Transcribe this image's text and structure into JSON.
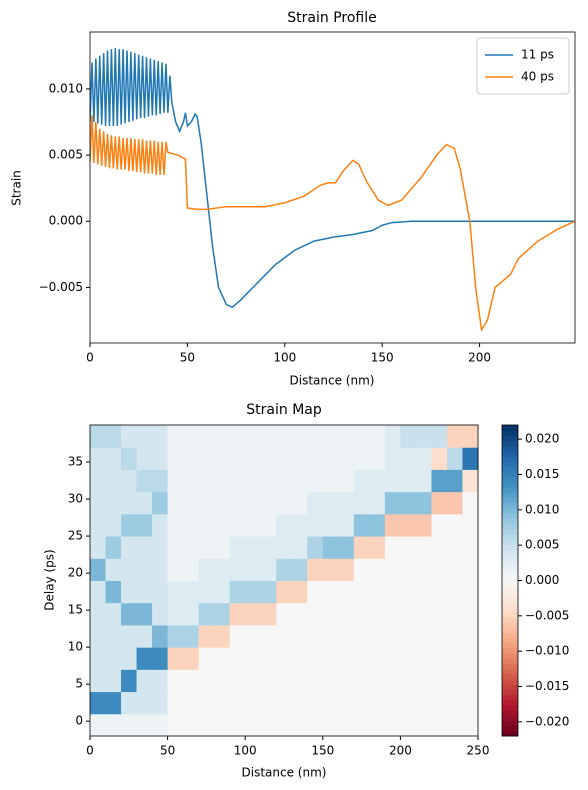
{
  "chart_data": [
    {
      "type": "line",
      "title": "Strain Profile",
      "x_label": "Distance (nm)",
      "y_label": "Strain",
      "xlim": [
        0,
        249
      ],
      "ylim": [
        -0.0092,
        0.0143
      ],
      "xticks": [
        0,
        50,
        100,
        150,
        200
      ],
      "yticks": [
        {
          "value": -0.005,
          "label": "−0.005"
        },
        {
          "value": 0,
          "label": "0.000"
        },
        {
          "value": 0.005,
          "label": "0.005"
        },
        {
          "value": 0.01,
          "label": "0.010"
        }
      ],
      "legend": "upper right",
      "series": [
        {
          "name": "11 ps",
          "color": "#1f77b4",
          "x": [
            0,
            1,
            2,
            3,
            4,
            5,
            6,
            7,
            8,
            9,
            10,
            11,
            12,
            13,
            14,
            15,
            16,
            17,
            18,
            19,
            20,
            21,
            22,
            23,
            24,
            25,
            26,
            27,
            28,
            29,
            30,
            31,
            32,
            33,
            34,
            35,
            36,
            37,
            38,
            39,
            40,
            41,
            42,
            44,
            46,
            48,
            49,
            50,
            52,
            54,
            55,
            57,
            60,
            63,
            66,
            70,
            73,
            77,
            85,
            95,
            105,
            115,
            125,
            135,
            145,
            150,
            155,
            165,
            200,
            249
          ],
          "values": [
            0.0075,
            0.012,
            0.0075,
            0.0123,
            0.0074,
            0.0125,
            0.0073,
            0.0127,
            0.0072,
            0.0129,
            0.0072,
            0.013,
            0.0072,
            0.0131,
            0.0072,
            0.013,
            0.0073,
            0.013,
            0.0074,
            0.0129,
            0.0075,
            0.0128,
            0.0076,
            0.0127,
            0.0077,
            0.0126,
            0.0078,
            0.0125,
            0.0078,
            0.0124,
            0.0079,
            0.0123,
            0.008,
            0.0122,
            0.008,
            0.0121,
            0.0081,
            0.012,
            0.0082,
            0.0119,
            0.0082,
            0.011,
            0.009,
            0.0075,
            0.0068,
            0.0075,
            0.0082,
            0.0072,
            0.0075,
            0.0081,
            0.0079,
            0.006,
            0.002,
            -0.002,
            -0.005,
            -0.0063,
            -0.0065,
            -0.006,
            -0.0048,
            -0.0033,
            -0.0022,
            -0.0015,
            -0.0012,
            -0.001,
            -0.0007,
            -0.0003,
            -0.0001,
            0,
            0,
            0
          ]
        },
        {
          "name": "40 ps",
          "color": "#ff7f0e",
          "x": [
            0,
            1,
            2,
            3,
            4,
            5,
            6,
            7,
            8,
            9,
            10,
            11,
            12,
            13,
            14,
            15,
            16,
            17,
            18,
            19,
            20,
            21,
            22,
            23,
            24,
            25,
            26,
            27,
            28,
            29,
            30,
            31,
            32,
            33,
            34,
            35,
            36,
            37,
            38,
            39,
            40,
            45,
            49,
            50,
            55,
            60,
            70,
            90,
            100,
            110,
            118,
            122,
            126,
            130,
            135,
            138,
            142,
            148,
            153,
            160,
            170,
            178,
            183,
            187,
            190,
            195,
            198,
            201,
            204,
            208,
            212,
            216,
            220,
            230,
            240,
            249
          ],
          "values": [
            0.0045,
            0.008,
            0.0044,
            0.0075,
            0.0043,
            0.007,
            0.0042,
            0.0068,
            0.0041,
            0.0066,
            0.004,
            0.0065,
            0.004,
            0.0064,
            0.0039,
            0.0064,
            0.0039,
            0.0063,
            0.0039,
            0.0063,
            0.0038,
            0.0063,
            0.0038,
            0.0062,
            0.0037,
            0.0062,
            0.0037,
            0.0062,
            0.0036,
            0.0061,
            0.0036,
            0.0061,
            0.0036,
            0.0061,
            0.0035,
            0.006,
            0.0035,
            0.006,
            0.0035,
            0.006,
            0.0052,
            0.005,
            0.0047,
            0.001,
            0.0009,
            0.0009,
            0.0011,
            0.0011,
            0.0014,
            0.0019,
            0.0027,
            0.0029,
            0.0029,
            0.0038,
            0.0046,
            0.0043,
            0.003,
            0.0016,
            0.0012,
            0.0016,
            0.0033,
            0.005,
            0.0058,
            0.0055,
            0.004,
            0,
            -0.005,
            -0.0082,
            -0.0075,
            -0.005,
            -0.0045,
            -0.004,
            -0.0028,
            -0.0015,
            -0.0006,
            0
          ]
        }
      ]
    },
    {
      "type": "heatmap",
      "title": "Strain Map",
      "x_label": "Distance (nm)",
      "y_label": "Delay (ps)",
      "xlim": [
        0,
        250
      ],
      "ylim": [
        -2,
        40
      ],
      "xticks": [
        0,
        50,
        100,
        150,
        200,
        250
      ],
      "yticks": [
        0,
        5,
        10,
        15,
        20,
        25,
        30,
        35
      ],
      "colormap": "RdBu",
      "clim": [
        -0.022,
        0.022
      ],
      "cticks": [
        {
          "value": -0.02,
          "label": "−0.020"
        },
        {
          "value": -0.015,
          "label": "−0.015"
        },
        {
          "value": -0.01,
          "label": "−0.010"
        },
        {
          "value": -0.005,
          "label": "−0.005"
        },
        {
          "value": 0,
          "label": "0.000"
        },
        {
          "value": 0.005,
          "label": "0.005"
        },
        {
          "value": 0.01,
          "label": "0.010"
        },
        {
          "value": 0.015,
          "label": "0.015"
        },
        {
          "value": 0.02,
          "label": "0.020"
        }
      ],
      "xbins": [
        0,
        10,
        20,
        30,
        40,
        50,
        60,
        70,
        80,
        90,
        100,
        110,
        120,
        130,
        140,
        150,
        160,
        170,
        180,
        190,
        200,
        210,
        220,
        230,
        240,
        250
      ],
      "ybins": [
        -2,
        1,
        4,
        7,
        10,
        13,
        16,
        19,
        22,
        25,
        28,
        31,
        34,
        37,
        40
      ],
      "z": [
        [
          0.001,
          0.001,
          0.001,
          0.001,
          0.001,
          0,
          0,
          0,
          0,
          0,
          0,
          0,
          0,
          0,
          0,
          0,
          0,
          0,
          0,
          0,
          0,
          0,
          0,
          0,
          0
        ],
        [
          0.014,
          0.014,
          0.004,
          0.004,
          0.004,
          0,
          0,
          0,
          0,
          0,
          0,
          0,
          0,
          0,
          0,
          0,
          0,
          0,
          0,
          0,
          0,
          0,
          0,
          0,
          0
        ],
        [
          0.004,
          0.004,
          0.014,
          0.004,
          0.004,
          0,
          0,
          0,
          0,
          0,
          0,
          0,
          0,
          0,
          0,
          0,
          0,
          0,
          0,
          0,
          0,
          0,
          0,
          0,
          0
        ],
        [
          0.004,
          0.004,
          0.004,
          0.014,
          0.014,
          -0.005,
          -0.005,
          0,
          0,
          0,
          0,
          0,
          0,
          0,
          0,
          0,
          0,
          0,
          0,
          0,
          0,
          0,
          0,
          0,
          0
        ],
        [
          0.004,
          0.004,
          0.004,
          0.004,
          0.01,
          0.007,
          0.007,
          -0.005,
          -0.005,
          0,
          0,
          0,
          0,
          0,
          0,
          0,
          0,
          0,
          0,
          0,
          0,
          0,
          0,
          0,
          0
        ],
        [
          0.004,
          0.004,
          0.01,
          0.01,
          0.004,
          0.003,
          0.003,
          0.007,
          0.007,
          -0.005,
          -0.005,
          -0.005,
          0,
          0,
          0,
          0,
          0,
          0,
          0,
          0,
          0,
          0,
          0,
          0,
          0
        ],
        [
          0.004,
          0.01,
          0.004,
          0.004,
          0.004,
          0.003,
          0.003,
          0.003,
          0.003,
          0.007,
          0.007,
          0.007,
          -0.005,
          -0.005,
          0,
          0,
          0,
          0,
          0,
          0,
          0,
          0,
          0,
          0,
          0
        ],
        [
          0.01,
          0.004,
          0.004,
          0.004,
          0.004,
          0.001,
          0.001,
          0.003,
          0.003,
          0.003,
          0.003,
          0.003,
          0.007,
          0.007,
          -0.005,
          -0.005,
          -0.005,
          0,
          0,
          0,
          0,
          0,
          0,
          0,
          0
        ],
        [
          0.004,
          0.008,
          0.004,
          0.004,
          0.004,
          0.001,
          0.001,
          0.001,
          0.001,
          0.003,
          0.003,
          0.003,
          0.003,
          0.003,
          0.007,
          0.009,
          0.009,
          -0.005,
          -0.005,
          0,
          0,
          0,
          0,
          0,
          0
        ],
        [
          0.004,
          0.004,
          0.008,
          0.008,
          0.004,
          0.001,
          0.001,
          0.001,
          0.001,
          0.001,
          0.001,
          0.001,
          0.003,
          0.003,
          0.003,
          0.003,
          0.003,
          0.009,
          0.009,
          -0.006,
          -0.006,
          -0.006,
          0,
          0,
          0
        ],
        [
          0.004,
          0.004,
          0.004,
          0.004,
          0.008,
          0.001,
          0.001,
          0.001,
          0.001,
          0.001,
          0.001,
          0.001,
          0.001,
          0.001,
          0.003,
          0.003,
          0.003,
          0.003,
          0.003,
          0.009,
          0.009,
          0.009,
          -0.006,
          -0.006,
          0
        ],
        [
          0.004,
          0.004,
          0.004,
          0.006,
          0.006,
          0.001,
          0.001,
          0.001,
          0.001,
          0.001,
          0.001,
          0.001,
          0.001,
          0.001,
          0.001,
          0.001,
          0.001,
          0.003,
          0.003,
          0.003,
          0.003,
          0.003,
          0.012,
          0.012,
          -0.003
        ],
        [
          0.004,
          0.004,
          0.006,
          0.004,
          0.004,
          0.001,
          0.001,
          0.001,
          0.001,
          0.001,
          0.001,
          0.001,
          0.001,
          0.001,
          0.001,
          0.001,
          0.001,
          0.001,
          0.001,
          0.003,
          0.003,
          0.003,
          -0.004,
          0.006,
          0.016
        ],
        [
          0.006,
          0.006,
          0.004,
          0.004,
          0.004,
          0.001,
          0.001,
          0.001,
          0.001,
          0.001,
          0.001,
          0.001,
          0.001,
          0.001,
          0.001,
          0.001,
          0.001,
          0.001,
          0.001,
          0.003,
          0.005,
          0.005,
          0.005,
          -0.005,
          -0.005
        ]
      ]
    }
  ]
}
